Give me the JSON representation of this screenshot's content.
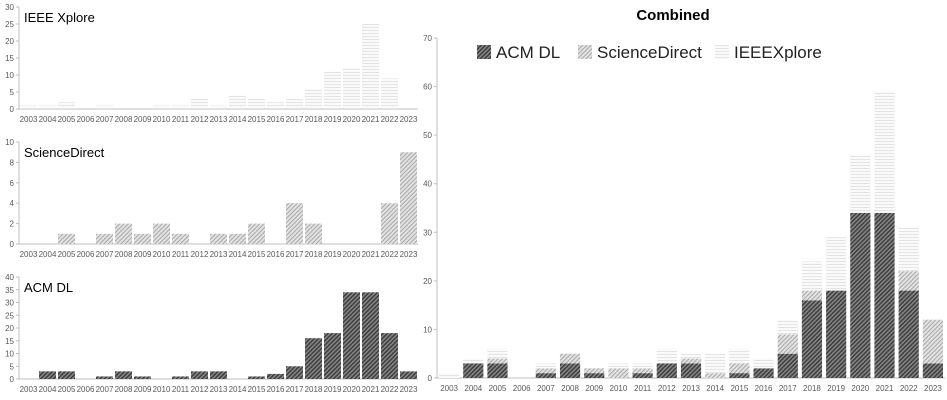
{
  "chart_data": [
    {
      "type": "bar",
      "title": "IEEE Xplore",
      "ylim": [
        0,
        30
      ],
      "yticks": [
        0,
        5,
        10,
        15,
        20,
        25,
        30
      ],
      "categories": [
        "2003",
        "2004",
        "2005",
        "2006",
        "2007",
        "2008",
        "2009",
        "2010",
        "2011",
        "2012",
        "2013",
        "2014",
        "2015",
        "2016",
        "2017",
        "2018",
        "2019",
        "2020",
        "2021",
        "2022",
        "2023"
      ],
      "values": [
        1,
        1,
        2,
        0,
        1,
        0,
        0,
        1,
        1,
        3,
        1,
        4,
        3,
        2,
        3,
        6,
        11,
        12,
        25,
        9,
        0
      ],
      "pattern": "ieee"
    },
    {
      "type": "bar",
      "title": "ScienceDirect",
      "ylim": [
        0,
        10
      ],
      "yticks": [
        0,
        2,
        4,
        6,
        8,
        10
      ],
      "categories": [
        "2003",
        "2004",
        "2005",
        "2006",
        "2007",
        "2008",
        "2009",
        "2010",
        "2011",
        "2012",
        "2013",
        "2014",
        "2015",
        "2016",
        "2017",
        "2018",
        "2019",
        "2020",
        "2021",
        "2022",
        "2023"
      ],
      "values": [
        0,
        0,
        1,
        0,
        1,
        2,
        1,
        2,
        1,
        0,
        1,
        1,
        2,
        0,
        4,
        2,
        0,
        0,
        0,
        4,
        9
      ],
      "pattern": "sd"
    },
    {
      "type": "bar",
      "title": "ACM DL",
      "ylim": [
        0,
        40
      ],
      "yticks": [
        0,
        5,
        10,
        15,
        20,
        25,
        30,
        35,
        40
      ],
      "categories": [
        "2003",
        "2004",
        "2005",
        "2006",
        "2007",
        "2008",
        "2009",
        "2010",
        "2011",
        "2012",
        "2013",
        "2014",
        "2015",
        "2016",
        "2017",
        "2018",
        "2019",
        "2020",
        "2021",
        "2022",
        "2023"
      ],
      "values": [
        0,
        3,
        3,
        0,
        1,
        3,
        1,
        0,
        1,
        3,
        3,
        0,
        1,
        2,
        5,
        16,
        18,
        34,
        34,
        18,
        3
      ],
      "pattern": "acm"
    },
    {
      "type": "bar",
      "stacked": true,
      "title": "Combined",
      "ylim": [
        0,
        70
      ],
      "yticks": [
        0,
        10,
        20,
        30,
        40,
        50,
        60,
        70
      ],
      "legend": "top",
      "categories": [
        "2003",
        "2004",
        "2005",
        "2006",
        "2007",
        "2008",
        "2009",
        "2010",
        "2011",
        "2012",
        "2013",
        "2014",
        "2015",
        "2016",
        "2017",
        "2018",
        "2019",
        "2020",
        "2021",
        "2022",
        "2023"
      ],
      "series": [
        {
          "name": "ACM DL",
          "pattern": "acm",
          "values": [
            0,
            3,
            3,
            0,
            1,
            3,
            1,
            0,
            1,
            3,
            3,
            0,
            1,
            2,
            5,
            16,
            18,
            34,
            34,
            18,
            3
          ]
        },
        {
          "name": "ScienceDirect",
          "pattern": "sd",
          "values": [
            0,
            0,
            1,
            0,
            1,
            2,
            1,
            2,
            1,
            0,
            1,
            1,
            2,
            0,
            4,
            2,
            0,
            0,
            0,
            4,
            9
          ]
        },
        {
          "name": "IEEEXplore",
          "pattern": "ieee",
          "values": [
            1,
            1,
            2,
            0,
            1,
            0,
            0,
            1,
            1,
            3,
            1,
            4,
            3,
            2,
            3,
            6,
            11,
            12,
            25,
            9,
            0
          ]
        }
      ]
    }
  ]
}
